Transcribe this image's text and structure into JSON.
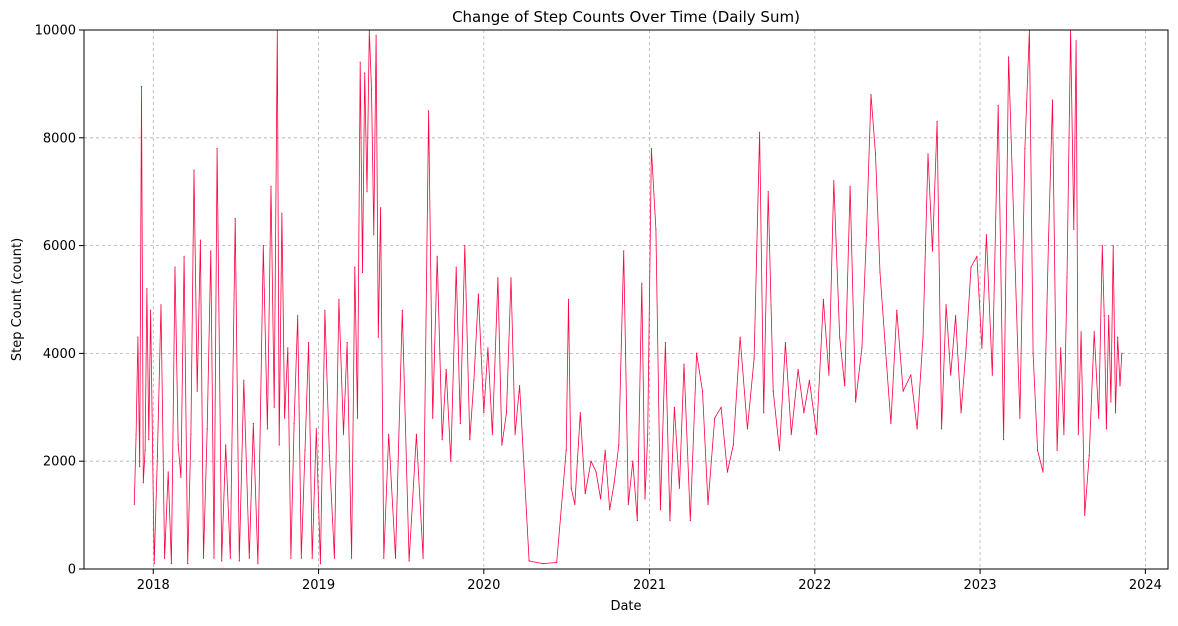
{
  "chart_data": {
    "type": "line",
    "title": "Change of Step Counts Over Time (Daily Sum)",
    "xlabel": "Date",
    "ylabel": "Step Count (count)",
    "xlim": [
      "2017-08-01",
      "2024-02-20"
    ],
    "ylim": [
      0,
      10000
    ],
    "x_ticks": [
      "2018",
      "2019",
      "2020",
      "2021",
      "2022",
      "2023",
      "2024"
    ],
    "y_ticks": [
      "0",
      "2000",
      "4000",
      "6000",
      "8000",
      "10000"
    ],
    "grid": true,
    "line_color": "#ff0040",
    "series": [
      {
        "x": [
          "2017-11-20",
          "2017-11-24",
          "2017-11-28",
          "2017-12-02",
          "2017-12-06",
          "2017-12-10",
          "2017-12-14",
          "2017-12-18",
          "2017-12-22",
          "2017-12-26",
          "2018-01-03",
          "2018-01-10",
          "2018-01-18",
          "2018-01-26",
          "2018-02-03",
          "2018-02-10",
          "2018-02-18",
          "2018-02-25",
          "2018-03-03",
          "2018-03-10",
          "2018-03-18",
          "2018-03-25",
          "2018-04-01",
          "2018-04-08",
          "2018-04-15",
          "2018-04-22",
          "2018-04-30",
          "2018-05-08",
          "2018-05-15",
          "2018-05-22",
          "2018-06-01",
          "2018-06-10",
          "2018-06-20",
          "2018-07-01",
          "2018-07-10",
          "2018-07-20",
          "2018-08-01",
          "2018-08-10",
          "2018-08-20",
          "2018-09-01",
          "2018-09-10",
          "2018-09-18",
          "2018-09-25",
          "2018-10-02",
          "2018-10-06",
          "2018-10-12",
          "2018-10-18",
          "2018-10-25",
          "2018-11-01",
          "2018-11-08",
          "2018-11-16",
          "2018-11-24",
          "2018-12-02",
          "2018-12-10",
          "2018-12-18",
          "2018-12-27",
          "2019-01-05",
          "2019-01-15",
          "2019-01-25",
          "2019-02-05",
          "2019-02-15",
          "2019-02-25",
          "2019-03-05",
          "2019-03-15",
          "2019-03-22",
          "2019-03-28",
          "2019-04-03",
          "2019-04-08",
          "2019-04-13",
          "2019-04-18",
          "2019-04-23",
          "2019-04-28",
          "2019-05-03",
          "2019-05-08",
          "2019-05-13",
          "2019-05-18",
          "2019-05-25",
          "2019-06-05",
          "2019-06-20",
          "2019-07-05",
          "2019-07-20",
          "2019-08-05",
          "2019-08-20",
          "2019-09-01",
          "2019-09-10",
          "2019-09-20",
          "2019-10-01",
          "2019-10-10",
          "2019-10-20",
          "2019-11-01",
          "2019-11-10",
          "2019-11-20",
          "2019-12-01",
          "2019-12-10",
          "2019-12-20",
          "2020-01-01",
          "2020-01-10",
          "2020-01-20",
          "2020-02-01",
          "2020-02-10",
          "2020-02-20",
          "2020-03-01",
          "2020-03-10",
          "2020-03-20",
          "2020-04-10",
          "2020-05-10",
          "2020-06-10",
          "2020-07-01",
          "2020-07-06",
          "2020-07-12",
          "2020-07-20",
          "2020-08-01",
          "2020-08-12",
          "2020-08-25",
          "2020-09-05",
          "2020-09-15",
          "2020-09-25",
          "2020-10-05",
          "2020-10-15",
          "2020-10-25",
          "2020-11-05",
          "2020-11-15",
          "2020-11-25",
          "2020-12-05",
          "2020-12-15",
          "2020-12-22",
          "2020-12-28",
          "2021-01-05",
          "2021-01-15",
          "2021-01-25",
          "2021-02-05",
          "2021-02-15",
          "2021-02-25",
          "2021-03-08",
          "2021-03-18",
          "2021-04-01",
          "2021-04-15",
          "2021-04-28",
          "2021-05-10",
          "2021-05-25",
          "2021-06-08",
          "2021-06-22",
          "2021-07-05",
          "2021-07-20",
          "2021-08-05",
          "2021-08-20",
          "2021-09-01",
          "2021-09-10",
          "2021-09-20",
          "2021-10-01",
          "2021-10-15",
          "2021-10-28",
          "2021-11-10",
          "2021-11-25",
          "2021-12-08",
          "2021-12-20",
          "2022-01-05",
          "2022-01-20",
          "2022-02-01",
          "2022-02-12",
          "2022-02-25",
          "2022-03-08",
          "2022-03-20",
          "2022-04-01",
          "2022-04-15",
          "2022-04-25",
          "2022-05-05",
          "2022-05-15",
          "2022-05-25",
          "2022-06-05",
          "2022-06-18",
          "2022-07-01",
          "2022-07-15",
          "2022-08-01",
          "2022-08-15",
          "2022-08-28",
          "2022-09-08",
          "2022-09-18",
          "2022-09-28",
          "2022-10-08",
          "2022-10-18",
          "2022-10-28",
          "2022-11-08",
          "2022-11-20",
          "2022-12-01",
          "2022-12-12",
          "2022-12-25",
          "2023-01-05",
          "2023-01-15",
          "2023-01-28",
          "2023-02-10",
          "2023-02-22",
          "2023-03-05",
          "2023-03-18",
          "2023-03-30",
          "2023-04-10",
          "2023-04-20",
          "2023-04-28",
          "2023-05-08",
          "2023-05-20",
          "2023-06-01",
          "2023-06-10",
          "2023-06-20",
          "2023-06-28",
          "2023-07-05",
          "2023-07-12",
          "2023-07-20",
          "2023-07-27",
          "2023-08-01",
          "2023-08-06",
          "2023-08-12",
          "2023-08-20",
          "2023-08-30",
          "2023-09-10",
          "2023-09-20",
          "2023-09-28",
          "2023-10-02",
          "2023-10-07",
          "2023-10-12",
          "2023-10-17",
          "2023-10-22",
          "2023-10-27",
          "2023-11-01",
          "2023-11-06",
          "2023-11-10"
        ],
        "y": [
          1200,
          2500,
          4300,
          1900,
          8950,
          1600,
          2200,
          5200,
          2400,
          4800,
          100,
          2100,
          4900,
          200,
          1800,
          100,
          5600,
          2300,
          1700,
          5800,
          100,
          2500,
          7400,
          3300,
          6100,
          200,
          2600,
          5900,
          200,
          7800,
          150,
          2300,
          200,
          6500,
          150,
          3500,
          200,
          2700,
          100,
          6000,
          2600,
          7100,
          3000,
          10000,
          2300,
          6600,
          2800,
          4100,
          200,
          2700,
          4700,
          200,
          2200,
          4200,
          200,
          2600,
          100,
          4800,
          2100,
          200,
          5000,
          2500,
          4200,
          200,
          5600,
          2800,
          9400,
          5500,
          9200,
          7000,
          10000,
          8900,
          6200,
          9900,
          4300,
          6700,
          200,
          2500,
          200,
          4800,
          150,
          2500,
          200,
          8500,
          2800,
          5800,
          2400,
          3700,
          2000,
          5600,
          2700,
          6000,
          2400,
          3500,
          5100,
          2900,
          4100,
          2500,
          5400,
          2300,
          2900,
          5400,
          2500,
          3400,
          150,
          100,
          120,
          2200,
          5000,
          1500,
          1200,
          2900,
          1400,
          2000,
          1800,
          1300,
          2200,
          1100,
          1600,
          2300,
          5900,
          1200,
          2000,
          900,
          5300,
          1300,
          2500,
          7800,
          6300,
          1100,
          4200,
          900,
          3000,
          1500,
          3800,
          900,
          4000,
          3300,
          1200,
          2800,
          3000,
          1800,
          2300,
          4300,
          2600,
          3900,
          8100,
          2900,
          7000,
          3300,
          2200,
          4200,
          2500,
          3700,
          2900,
          3500,
          2500,
          5000,
          3600,
          7200,
          4300,
          3400,
          7100,
          3100,
          4100,
          6200,
          8800,
          7700,
          5500,
          4200,
          2700,
          4800,
          3300,
          3600,
          2600,
          4300,
          7700,
          5900,
          8300,
          2600,
          4900,
          3600,
          4700,
          2900,
          4100,
          5600,
          5800,
          4100,
          6200,
          3600,
          8600,
          2400,
          9500,
          6000,
          2800,
          7800,
          10000,
          4000,
          2200,
          1800,
          6100,
          8700,
          2200,
          4100,
          2500,
          5400,
          10000,
          6300,
          9800,
          2500,
          4400,
          1000,
          2100,
          4400,
          2800,
          6000,
          4700,
          2600,
          4700,
          3100,
          6000,
          2900,
          4300,
          3400,
          4000
        ]
      }
    ]
  }
}
